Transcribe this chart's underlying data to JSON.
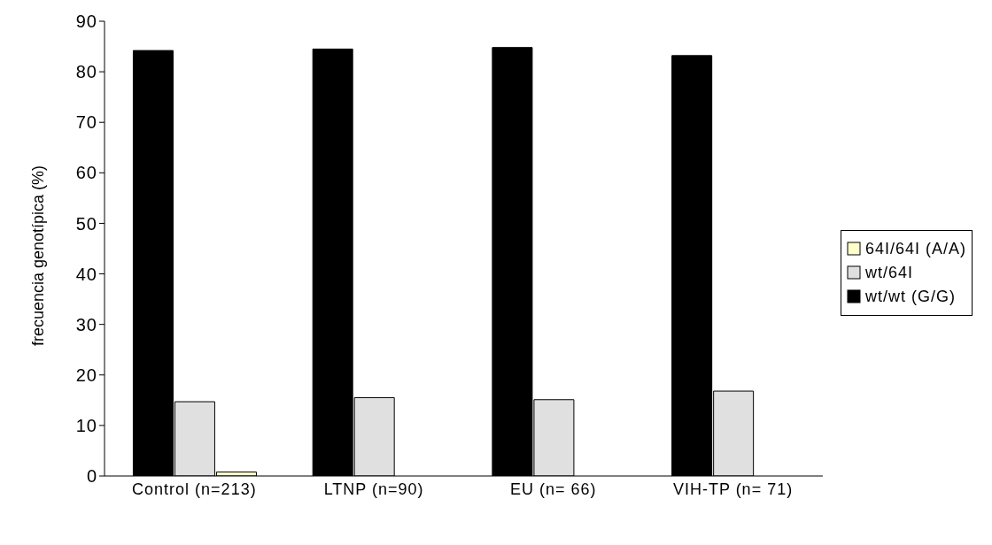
{
  "chart_data": {
    "type": "bar",
    "ylabel": "frecuencia genotípica (%)",
    "categories": [
      "Control (n=213)",
      "LTNP (n=90)",
      "EU (n= 66)",
      "VIH-TP (n= 71)"
    ],
    "series": [
      {
        "name": "wt/wt (G/G)",
        "color": "#000000",
        "values": [
          84.2,
          84.5,
          84.8,
          83.2
        ]
      },
      {
        "name": "wt/64I",
        "color": "#e0e0e0",
        "values": [
          14.7,
          15.5,
          15.1,
          16.8
        ]
      },
      {
        "name": "64I/64I (A/A)",
        "color": "#ffffcc",
        "values": [
          0.8,
          0,
          0,
          0
        ]
      }
    ],
    "ylim": [
      0,
      90
    ],
    "yticks": [
      0,
      10,
      20,
      30,
      40,
      50,
      60,
      70,
      80,
      90
    ],
    "grid": false,
    "legend": "right"
  }
}
